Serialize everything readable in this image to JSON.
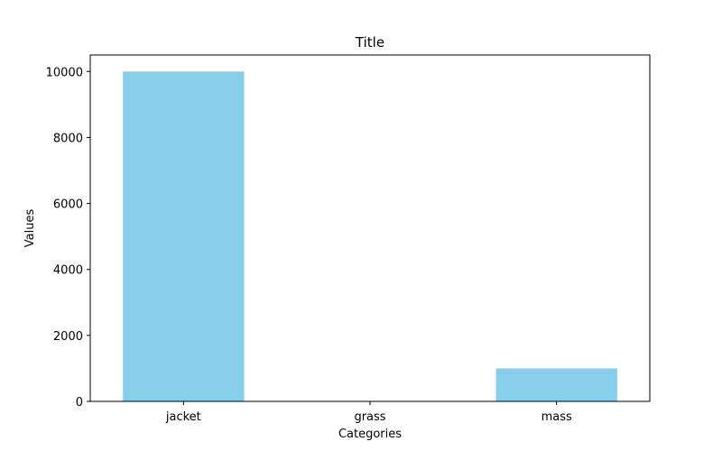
{
  "chart_data": {
    "type": "bar",
    "title": "Title",
    "xlabel": "Categories",
    "ylabel": "Values",
    "categories": [
      "jacket",
      "grass",
      "mass"
    ],
    "values": [
      10000,
      1,
      1000
    ],
    "ylim": [
      0,
      10500
    ],
    "yticks": [
      0,
      2000,
      4000,
      6000,
      8000,
      10000
    ],
    "ytick_labels": [
      "0",
      "2000",
      "4000",
      "6000",
      "8000",
      "10000"
    ],
    "bar_color": "#87CEEB",
    "grid": false,
    "legend": "none"
  }
}
